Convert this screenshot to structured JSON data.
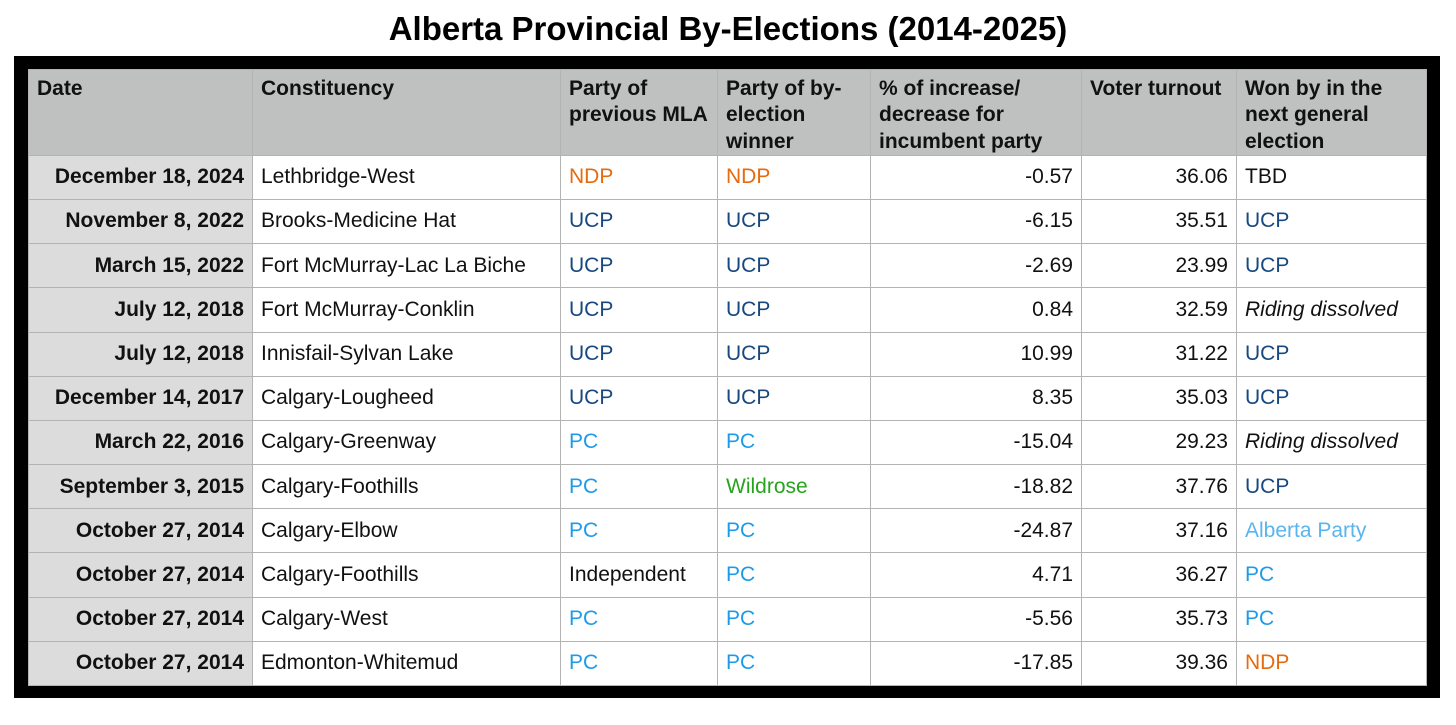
{
  "title": "Alberta Provincial By-Elections (2014-2025)",
  "headers": [
    "Date",
    "Constituency",
    "Party of previous MLA",
    "Party of by-election winner",
    "% of increase/ decrease for incumbent party",
    "Voter turnout",
    "Won by in the next general election"
  ],
  "party_colors": {
    "NDP": "#e66a0e",
    "UCP": "#17487f",
    "PC": "#1d9be8",
    "Wildrose": "#27a31d",
    "Alberta Party": "#5ab4ee"
  },
  "rows": [
    {
      "date": "December 18, 2024",
      "constituency": "Lethbridge-West",
      "previous": "NDP",
      "winner": "NDP",
      "change": "-0.57",
      "turnout": "36.06",
      "next": "TBD"
    },
    {
      "date": "November 8, 2022",
      "constituency": "Brooks-Medicine Hat",
      "previous": "UCP",
      "winner": "UCP",
      "change": "-6.15",
      "turnout": "35.51",
      "next": "UCP"
    },
    {
      "date": "March 15, 2022",
      "constituency": "Fort McMurray-Lac La Biche",
      "previous": "UCP",
      "winner": "UCP",
      "change": "-2.69",
      "turnout": "23.99",
      "next": "UCP"
    },
    {
      "date": "July 12, 2018",
      "constituency": "Fort McMurray-Conklin",
      "previous": "UCP",
      "winner": "UCP",
      "change": "0.84",
      "turnout": "32.59",
      "next": "Riding dissolved"
    },
    {
      "date": "July 12, 2018",
      "constituency": "Innisfail-Sylvan Lake",
      "previous": "UCP",
      "winner": "UCP",
      "change": "10.99",
      "turnout": "31.22",
      "next": "UCP"
    },
    {
      "date": "December 14, 2017",
      "constituency": "Calgary-Lougheed",
      "previous": "UCP",
      "winner": "UCP",
      "change": "8.35",
      "turnout": "35.03",
      "next": "UCP"
    },
    {
      "date": "March 22, 2016",
      "constituency": "Calgary-Greenway",
      "previous": "PC",
      "winner": "PC",
      "change": "-15.04",
      "turnout": "29.23",
      "next": "Riding dissolved"
    },
    {
      "date": "September 3, 2015",
      "constituency": "Calgary-Foothills",
      "previous": "PC",
      "winner": "Wildrose",
      "change": "-18.82",
      "turnout": "37.76",
      "next": "UCP"
    },
    {
      "date": "October 27, 2014",
      "constituency": "Calgary-Elbow",
      "previous": "PC",
      "winner": "PC",
      "change": "-24.87",
      "turnout": "37.16",
      "next": "Alberta Party"
    },
    {
      "date": "October 27, 2014",
      "constituency": "Calgary-Foothills",
      "previous": "Independent",
      "winner": "PC",
      "change": "4.71",
      "turnout": "36.27",
      "next": "PC"
    },
    {
      "date": "October 27, 2014",
      "constituency": "Calgary-West",
      "previous": "PC",
      "winner": "PC",
      "change": "-5.56",
      "turnout": "35.73",
      "next": "PC"
    },
    {
      "date": "October 27, 2014",
      "constituency": "Edmonton-Whitemud",
      "previous": "PC",
      "winner": "PC",
      "change": "-17.85",
      "turnout": "39.36",
      "next": "NDP"
    }
  ]
}
